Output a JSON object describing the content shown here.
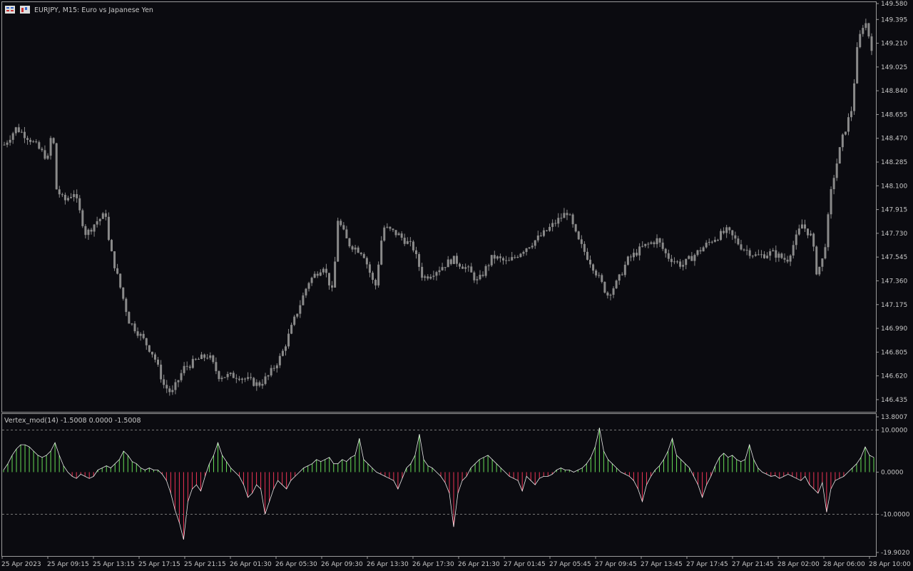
{
  "window": {
    "symbol_title": "EURJPY, M15:  Euro vs Japanese Yen",
    "icons": [
      "chart-grid-icon",
      "indicator-icon"
    ]
  },
  "colors": {
    "background": "#0b0b10",
    "frame": "#9a9a9a",
    "candle": "#8a8a8a",
    "osc_positive": "#66dd55",
    "osc_negative": "#ee3355",
    "osc_line": "#ffffff",
    "level_line": "#777777"
  },
  "chart_data": [
    {
      "type": "candlestick",
      "title": "EURJPY, M15:  Euro vs Japanese Yen",
      "ylim": [
        146.34,
        149.53
      ],
      "y_ticks": [
        "149.580",
        "149.395",
        "149.210",
        "149.025",
        "148.840",
        "148.655",
        "148.470",
        "148.285",
        "148.100",
        "147.915",
        "147.730",
        "147.545",
        "147.360",
        "147.175",
        "146.990",
        "146.805",
        "146.620",
        "146.435"
      ],
      "close_path": [
        [
          0,
          148.42
        ],
        [
          12,
          148.55
        ],
        [
          25,
          148.47
        ],
        [
          45,
          148.3
        ],
        [
          48,
          148.62
        ],
        [
          52,
          148.08
        ],
        [
          60,
          147.98
        ],
        [
          70,
          148.05
        ],
        [
          82,
          147.72
        ],
        [
          92,
          147.82
        ],
        [
          102,
          147.88
        ],
        [
          105,
          147.65
        ],
        [
          115,
          147.35
        ],
        [
          125,
          147.05
        ],
        [
          138,
          146.92
        ],
        [
          150,
          146.78
        ],
        [
          160,
          146.55
        ],
        [
          168,
          146.48
        ],
        [
          180,
          146.68
        ],
        [
          195,
          146.75
        ],
        [
          205,
          146.78
        ],
        [
          215,
          146.62
        ],
        [
          235,
          146.62
        ],
        [
          255,
          146.55
        ],
        [
          265,
          146.62
        ],
        [
          278,
          146.78
        ],
        [
          292,
          147.08
        ],
        [
          305,
          147.35
        ],
        [
          320,
          147.48
        ],
        [
          330,
          147.25
        ],
        [
          334,
          147.85
        ],
        [
          345,
          147.65
        ],
        [
          360,
          147.58
        ],
        [
          372,
          147.3
        ],
        [
          380,
          147.78
        ],
        [
          395,
          147.72
        ],
        [
          410,
          147.62
        ],
        [
          420,
          147.38
        ],
        [
          435,
          147.45
        ],
        [
          450,
          147.53
        ],
        [
          465,
          147.45
        ],
        [
          475,
          147.35
        ],
        [
          490,
          147.55
        ],
        [
          505,
          147.5
        ],
        [
          520,
          147.6
        ],
        [
          540,
          147.72
        ],
        [
          555,
          147.83
        ],
        [
          565,
          147.9
        ],
        [
          575,
          147.68
        ],
        [
          590,
          147.48
        ],
        [
          605,
          147.25
        ],
        [
          615,
          147.35
        ],
        [
          625,
          147.52
        ],
        [
          640,
          147.62
        ],
        [
          655,
          147.68
        ],
        [
          665,
          147.55
        ],
        [
          680,
          147.48
        ],
        [
          695,
          147.58
        ],
        [
          710,
          147.68
        ],
        [
          725,
          147.75
        ],
        [
          740,
          147.62
        ],
        [
          755,
          147.55
        ],
        [
          770,
          147.58
        ],
        [
          785,
          147.52
        ],
        [
          800,
          147.8
        ],
        [
          810,
          147.7
        ],
        [
          815,
          147.42
        ],
        [
          822,
          147.55
        ],
        [
          830,
          148.1
        ],
        [
          840,
          148.45
        ],
        [
          850,
          148.7
        ],
        [
          856,
          149.2
        ],
        [
          863,
          149.4
        ],
        [
          870,
          149.18
        ]
      ],
      "x_ticks": [
        "25 Apr 2023",
        "25 Apr 09:15",
        "25 Apr 13:15",
        "25 Apr 17:15",
        "25 Apr 21:15",
        "26 Apr 01:30",
        "26 Apr 05:30",
        "26 Apr 09:30",
        "26 Apr 13:30",
        "26 Apr 17:30",
        "26 Apr 21:30",
        "27 Apr 01:45",
        "27 Apr 05:45",
        "27 Apr 09:45",
        "27 Apr 13:45",
        "27 Apr 17:45",
        "27 Apr 21:45",
        "28 Apr 02:00",
        "28 Apr 06:00",
        "28 Apr 10:00"
      ]
    },
    {
      "type": "bar",
      "title": "Vertex_mod(14) -1.5008 0.0000 -1.5008",
      "ylim": [
        -19.907,
        13.8007
      ],
      "y_ticks": [
        "13.8007",
        "10.0000",
        "0.0000",
        "-10.0000",
        "-19.9020"
      ],
      "levels": [
        10,
        -10
      ],
      "values": [
        0.5,
        2.0,
        4.0,
        5.5,
        6.5,
        6.5,
        6.0,
        5.0,
        4.0,
        3.5,
        4.0,
        5.0,
        7.0,
        4.0,
        1.5,
        0.0,
        -1.0,
        -1.5,
        -0.5,
        -1.0,
        -1.5,
        -1.0,
        0.5,
        1.0,
        1.5,
        1.0,
        2.0,
        3.0,
        5.0,
        4.0,
        2.5,
        2.0,
        1.0,
        0.5,
        1.0,
        0.5,
        0.5,
        -0.5,
        -2.0,
        -5.0,
        -9.0,
        -12.0,
        -16.0,
        -7.0,
        -4.0,
        -3.0,
        -4.5,
        -1.0,
        2.0,
        4.0,
        7.0,
        4.0,
        2.5,
        1.0,
        0.0,
        -1.0,
        -3.0,
        -6.0,
        -5.0,
        -3.0,
        -4.0,
        -10.0,
        -7.0,
        -4.0,
        -2.0,
        -3.0,
        -4.0,
        -2.0,
        -1.0,
        0.0,
        1.0,
        1.5,
        2.0,
        3.0,
        2.5,
        3.0,
        3.5,
        2.0,
        2.0,
        3.0,
        2.5,
        3.5,
        4.0,
        8.0,
        3.0,
        2.0,
        1.0,
        0.0,
        -0.5,
        -1.0,
        -1.5,
        -2.0,
        -4.0,
        -1.5,
        1.0,
        2.0,
        4.0,
        9.0,
        3.0,
        1.5,
        1.0,
        0.0,
        -1.0,
        -2.5,
        -5.0,
        -13.0,
        -5.0,
        -2.0,
        -1.0,
        1.0,
        2.0,
        3.0,
        3.5,
        4.0,
        3.0,
        2.0,
        1.0,
        0.0,
        -1.0,
        -1.5,
        -2.0,
        -4.5,
        -1.0,
        -2.0,
        -3.0,
        -1.5,
        -1.0,
        -1.0,
        -0.5,
        0.5,
        1.0,
        0.5,
        0.5,
        0.0,
        0.5,
        1.0,
        2.0,
        3.5,
        6.0,
        10.5,
        5.0,
        3.0,
        2.0,
        1.0,
        0.0,
        -0.5,
        -1.0,
        -2.0,
        -4.0,
        -7.0,
        -3.0,
        -1.0,
        0.5,
        1.5,
        3.0,
        5.0,
        8.0,
        4.0,
        3.0,
        2.0,
        1.0,
        -1.0,
        -3.0,
        -6.0,
        -3.0,
        -1.0,
        1.5,
        3.5,
        4.5,
        3.5,
        4.0,
        3.0,
        2.5,
        3.0,
        6.5,
        3.0,
        1.0,
        0.0,
        -0.5,
        -1.0,
        -0.8,
        -1.5,
        -1.0,
        -0.5,
        -1.0,
        -1.5,
        -2.0,
        -1.0,
        -3.0,
        -4.0,
        -5.0,
        -2.5,
        -9.5,
        -4.0,
        -2.0,
        -1.5,
        -1.0,
        0.0,
        1.0,
        2.0,
        3.5,
        6.0,
        4.0,
        3.5
      ]
    }
  ]
}
